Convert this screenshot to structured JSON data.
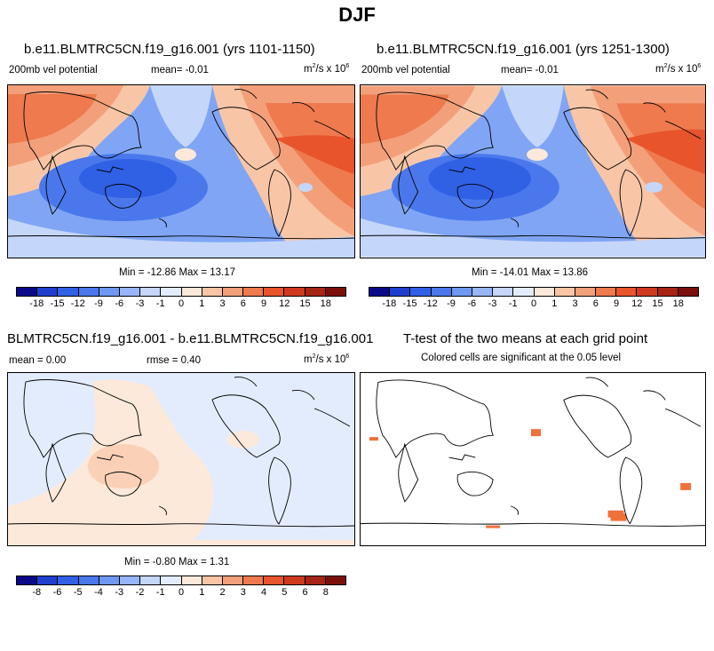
{
  "title": "DJF",
  "colors": {
    "scale": [
      "#0a0a88",
      "#1f3fcf",
      "#3060e4",
      "#4a78ec",
      "#6e98f2",
      "#97b6f7",
      "#c4d6fa",
      "#e3ecfc",
      "#fde9d9",
      "#f8c6a7",
      "#f3a07a",
      "#ee7a4e",
      "#e8542c",
      "#cf3a1e",
      "#a82516",
      "#7d0f0b"
    ],
    "land_line": "#000000",
    "significant": "#f0703a"
  },
  "panels": {
    "p1": {
      "title": "b.e11.BLMTRC5CN.f19_g16.001 (yrs 1101-1150)",
      "field_label": "200mb vel potential",
      "mean_text": "mean=  -0.01",
      "units_main": "m",
      "units_sup1": "2",
      "units_mid": "/s x 10",
      "units_sup2": "6",
      "minmax": "Min = -12.86 Max =  13.17"
    },
    "p2": {
      "title": "b.e11.BLMTRC5CN.f19_g16.001 (yrs 1251-1300)",
      "field_label": "200mb vel potential",
      "mean_text": "mean=  -0.01",
      "units_main": "m",
      "units_sup1": "2",
      "units_mid": "/s x 10",
      "units_sup2": "6",
      "minmax": "Min = -14.01 Max =  13.86"
    },
    "p3": {
      "title": "BLMTRC5CN.f19_g16.001 - b.e11.BLMTRC5CN.f19_g16.001",
      "mean_text": "mean =   0.00",
      "rmse_text": "rmse =   0.40",
      "units_main": "m",
      "units_sup1": "2",
      "units_mid": "/s x 10",
      "units_sup2": "6",
      "minmax": "Min = -0.80 Max =  1.31"
    },
    "p4": {
      "title": "T-test of the two means at each grid point",
      "subtitle": "Colored cells are significant at the 0.05 level"
    }
  },
  "chart_data": [
    {
      "type": "heatmap",
      "title": "b.e11.BLMTRC5CN.f19_g16.001 (yrs 1101-1150)",
      "field": "200mb vel potential",
      "units": "m2/s x 10^6",
      "mean": -0.01,
      "min": -12.86,
      "max": 13.17,
      "contour_levels": [
        -18,
        -15,
        -12,
        -9,
        -6,
        -3,
        -1,
        0,
        1,
        3,
        6,
        9,
        12,
        15,
        18
      ]
    },
    {
      "type": "heatmap",
      "title": "b.e11.BLMTRC5CN.f19_g16.001 (yrs 1251-1300)",
      "field": "200mb vel potential",
      "units": "m2/s x 10^6",
      "mean": -0.01,
      "min": -14.01,
      "max": 13.86,
      "contour_levels": [
        -18,
        -15,
        -12,
        -9,
        -6,
        -3,
        -1,
        0,
        1,
        3,
        6,
        9,
        12,
        15,
        18
      ]
    },
    {
      "type": "heatmap",
      "title": "BLMTRC5CN.f19_g16.001 - b.e11.BLMTRC5CN.f19_g16.001",
      "units": "m2/s x 10^6",
      "mean": 0.0,
      "rmse": 0.4,
      "min": -0.8,
      "max": 1.31,
      "contour_levels": [
        -8,
        -6,
        -5,
        -4,
        -3,
        -2,
        -1,
        0,
        1,
        2,
        3,
        4,
        5,
        6,
        8
      ]
    },
    {
      "type": "heatmap",
      "title": "T-test of the two means at each grid point",
      "subtitle": "Colored cells are significant at the 0.05 level"
    }
  ]
}
